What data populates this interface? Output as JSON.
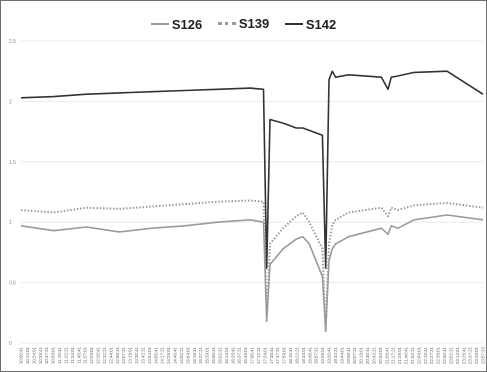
{
  "chart_data": {
    "type": "line",
    "title": "",
    "xlabel": "",
    "ylabel": "",
    "ylim": [
      0,
      2.5
    ],
    "yticks": [
      "0",
      "0.5",
      "1",
      "1.5",
      "2",
      "2.5"
    ],
    "grid": true,
    "legend_position": "top-center",
    "x_tick_labels": [
      "10:00:41",
      "10:12:01",
      "10:24:01",
      "10:35:41",
      "10:47:21",
      "10:59:01",
      "11:10:41",
      "11:22:21",
      "11:34:01",
      "11:45:41",
      "11:57:01",
      "12:09:01",
      "12:20:41",
      "12:32:21",
      "12:44:01",
      "12:55:41",
      "13:07:21",
      "13:19:01",
      "13:30:41",
      "13:42:21",
      "13:54:01",
      "14:05:41",
      "14:17:21",
      "14:29:01",
      "14:40:41",
      "14:52:21",
      "15:04:01",
      "15:15:41",
      "15:27:21",
      "15:39:01",
      "15:50:41",
      "16:02:21",
      "16:14:01",
      "16:25:41",
      "16:37:21",
      "16:49:01",
      "17:00:41",
      "17:12:21",
      "17:24:01",
      "17:35:41",
      "17:47:21",
      "17:59:01",
      "18:10:41",
      "18:22:21",
      "18:34:01",
      "18:45:41",
      "18:57:21",
      "19:09:01",
      "19:20:41",
      "19:32:21",
      "19:44:01",
      "19:55:41",
      "20:07:21",
      "20:19:01",
      "20:30:41",
      "20:42:21",
      "20:54:01",
      "21:05:41",
      "21:17:21",
      "21:29:01",
      "21:40:41",
      "21:52:21",
      "22:04:01",
      "22:15:41",
      "22:27:21",
      "22:39:01",
      "22:50:41",
      "23:02:21",
      "23:14:01",
      "23:25:41",
      "23:37:21",
      "23:49:01",
      "23:57:23"
    ],
    "x": [
      0,
      10,
      20,
      30,
      40,
      50,
      60,
      70,
      74,
      75,
      76,
      80,
      84,
      86,
      88,
      92,
      93,
      94,
      95,
      96,
      100,
      110,
      112,
      113,
      115,
      120,
      130,
      141
    ],
    "series": [
      {
        "name": "S126",
        "color": "#9a9a9a",
        "dash": "solid",
        "width": 1.6,
        "values": [
          0.97,
          0.93,
          0.96,
          0.92,
          0.95,
          0.97,
          1.0,
          1.02,
          1.0,
          0.18,
          0.65,
          0.78,
          0.86,
          0.88,
          0.82,
          0.55,
          0.1,
          0.68,
          0.78,
          0.82,
          0.88,
          0.95,
          0.9,
          0.97,
          0.95,
          1.02,
          1.06,
          1.02
        ]
      },
      {
        "name": "S139",
        "color": "#9a9a9a",
        "dash": "dotted",
        "width": 2,
        "values": [
          1.1,
          1.08,
          1.12,
          1.11,
          1.13,
          1.15,
          1.17,
          1.18,
          1.17,
          0.24,
          0.82,
          0.95,
          1.05,
          1.08,
          1.0,
          0.78,
          0.1,
          0.82,
          0.98,
          1.02,
          1.08,
          1.12,
          1.05,
          1.12,
          1.1,
          1.14,
          1.16,
          1.12
        ]
      },
      {
        "name": "S142",
        "color": "#333333",
        "dash": "solid",
        "width": 1.6,
        "values": [
          2.03,
          2.04,
          2.06,
          2.07,
          2.08,
          2.09,
          2.1,
          2.11,
          2.1,
          0.62,
          1.85,
          1.82,
          1.78,
          1.78,
          1.76,
          1.72,
          0.62,
          2.18,
          2.25,
          2.2,
          2.22,
          2.2,
          2.1,
          2.2,
          2.21,
          2.24,
          2.25,
          2.06
        ]
      }
    ]
  }
}
